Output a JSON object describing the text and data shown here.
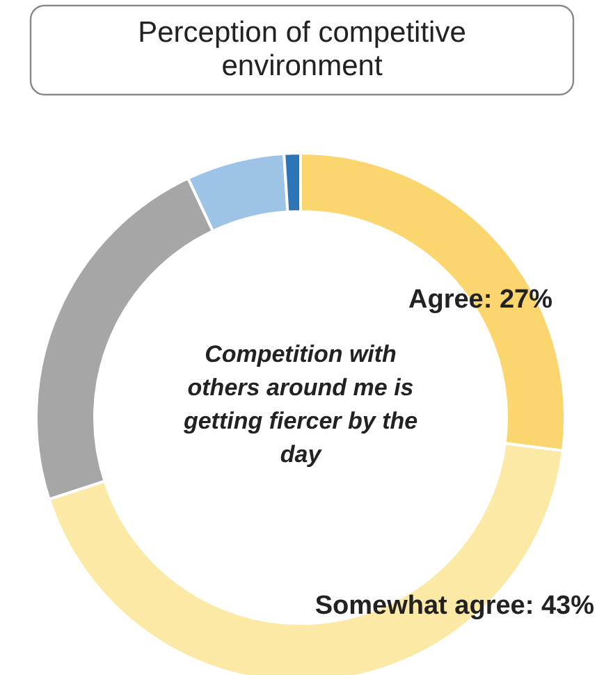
{
  "chart_data": {
    "type": "donut",
    "title": "Perception of competitive environment",
    "categories": [
      "Agree",
      "Somewhat agree",
      null,
      null,
      null
    ],
    "values": [
      27,
      43,
      23,
      6,
      1
    ],
    "value_labels": [
      "27%",
      "43%",
      null,
      null,
      null
    ],
    "colors": [
      "#fbd66e",
      "#fde9a6",
      "#a6a6a6",
      "#9dc3e6",
      "#2e75b6"
    ],
    "annotations": [
      "Competition with others around me is getting fiercer by the day"
    ]
  }
}
